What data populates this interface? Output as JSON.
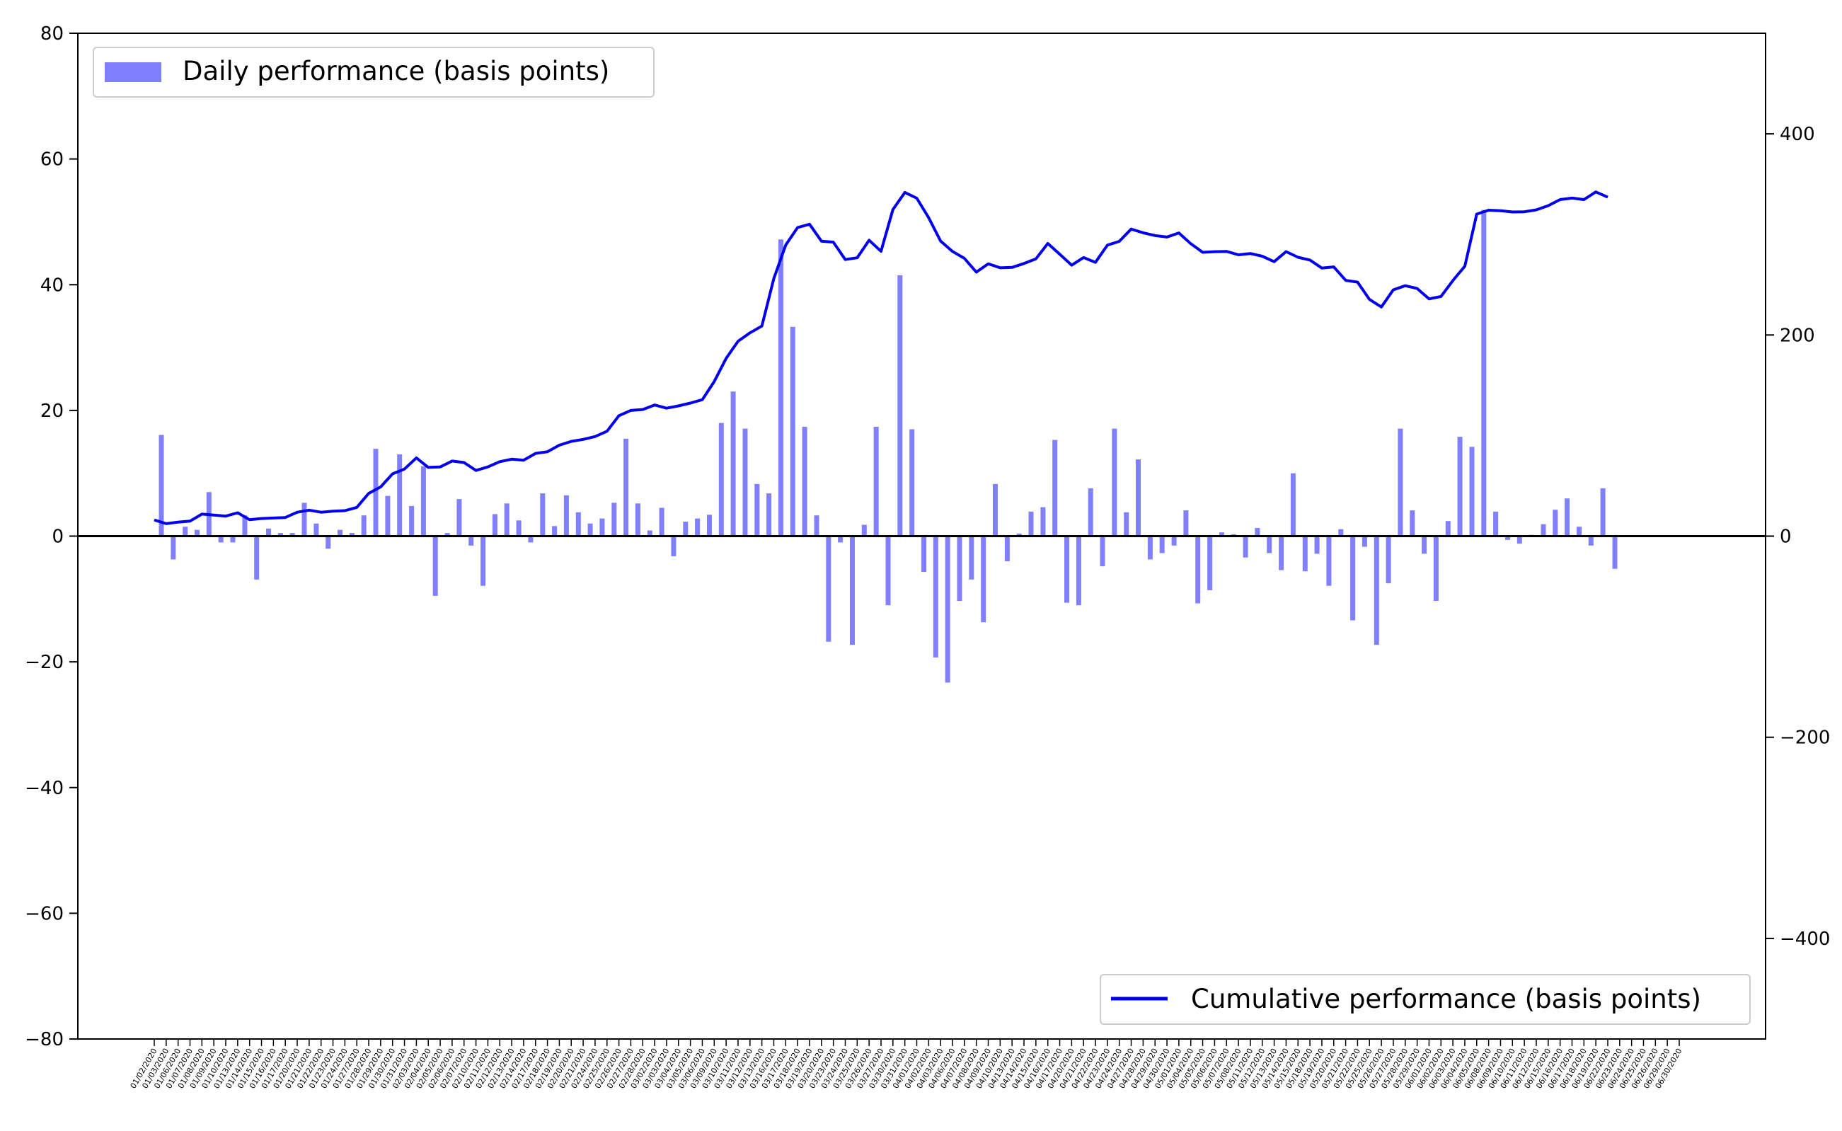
{
  "chart_data": {
    "type": "bar+line",
    "title": "",
    "xlabel": "",
    "ylabel_left": "",
    "ylabel_right": "",
    "ylim_left": [
      -80,
      80
    ],
    "ylim_right": [
      -500,
      500
    ],
    "yticks_left": [
      -80,
      -60,
      -40,
      -20,
      0,
      20,
      40,
      60,
      80
    ],
    "yticks_right": [
      -400,
      -200,
      0,
      200,
      400
    ],
    "grid": false,
    "legend_bars": {
      "label": "Daily performance (basis points)",
      "placement": "top-left"
    },
    "legend_line": {
      "label": "Cumulative performance (basis points)",
      "placement": "bottom-right"
    },
    "bar_color": "#8080ff",
    "line_color": "#0000ee",
    "zero_line_color": "#000000",
    "dates": [
      "01/02/2020",
      "01/03/2020",
      "01/06/2020",
      "01/07/2020",
      "01/08/2020",
      "01/09/2020",
      "01/10/2020",
      "01/13/2020",
      "01/14/2020",
      "01/15/2020",
      "01/16/2020",
      "01/17/2020",
      "01/20/2020",
      "01/21/2020",
      "01/22/2020",
      "01/23/2020",
      "01/24/2020",
      "01/27/2020",
      "01/28/2020",
      "01/29/2020",
      "01/30/2020",
      "01/31/2020",
      "02/03/2020",
      "02/04/2020",
      "02/05/2020",
      "02/06/2020",
      "02/07/2020",
      "02/10/2020",
      "02/11/2020",
      "02/12/2020",
      "02/13/2020",
      "02/14/2020",
      "02/17/2020",
      "02/18/2020",
      "02/19/2020",
      "02/20/2020",
      "02/21/2020",
      "02/24/2020",
      "02/25/2020",
      "02/26/2020",
      "02/27/2020",
      "02/28/2020",
      "03/02/2020",
      "03/03/2020",
      "03/04/2020",
      "03/05/2020",
      "03/06/2020",
      "03/09/2020",
      "03/10/2020",
      "03/11/2020",
      "03/12/2020",
      "03/13/2020",
      "03/16/2020",
      "03/17/2020",
      "03/18/2020",
      "03/19/2020",
      "03/20/2020",
      "03/23/2020",
      "03/24/2020",
      "03/25/2020",
      "03/26/2020",
      "03/27/2020",
      "03/30/2020",
      "03/31/2020",
      "04/01/2020",
      "04/02/2020",
      "04/03/2020",
      "04/06/2020",
      "04/07/2020",
      "04/08/2020",
      "04/09/2020",
      "04/10/2020",
      "04/13/2020",
      "04/14/2020",
      "04/15/2020",
      "04/16/2020",
      "04/17/2020",
      "04/20/2020",
      "04/21/2020",
      "04/22/2020",
      "04/23/2020",
      "04/24/2020",
      "04/27/2020",
      "04/28/2020",
      "04/29/2020",
      "04/30/2020",
      "05/01/2020",
      "05/04/2020",
      "05/05/2020",
      "05/06/2020",
      "05/07/2020",
      "05/08/2020",
      "05/11/2020",
      "05/12/2020",
      "05/13/2020",
      "05/14/2020",
      "05/15/2020",
      "05/18/2020",
      "05/19/2020",
      "05/20/2020",
      "05/21/2020",
      "05/22/2020",
      "05/25/2020",
      "05/26/2020",
      "05/27/2020",
      "05/28/2020",
      "05/29/2020",
      "06/01/2020",
      "06/02/2020",
      "06/03/2020",
      "06/04/2020",
      "06/05/2020",
      "06/08/2020",
      "06/09/2020",
      "06/10/2020",
      "06/11/2020",
      "06/12/2020",
      "06/15/2020",
      "06/16/2020",
      "06/17/2020",
      "06/18/2020",
      "06/19/2020",
      "06/22/2020",
      "06/23/2020",
      "06/24/2020",
      "06/25/2020",
      "06/26/2020",
      "06/29/2020",
      "06/30/2020"
    ],
    "daily": [
      16.1,
      -3.7,
      1.5,
      1.0,
      7.0,
      -1.0,
      -1.0,
      3.3,
      -6.9,
      1.2,
      0.5,
      0.5,
      5.3,
      2.0,
      -2.0,
      1.0,
      0.5,
      3.3,
      13.9,
      6.4,
      13.0,
      4.8,
      11.1,
      -9.5,
      0.5,
      5.9,
      -1.5,
      -7.9,
      3.5,
      5.2,
      2.5,
      -1.0,
      6.8,
      1.6,
      6.5,
      3.8,
      2.0,
      2.8,
      5.3,
      15.5,
      5.2,
      0.9,
      4.5,
      -3.2,
      2.3,
      2.8,
      3.4,
      18.0,
      23.0,
      17.1,
      8.3,
      6.8,
      47.2,
      33.3,
      17.4,
      3.3,
      -16.8,
      -1.0,
      -17.3,
      1.8,
      17.4,
      -11.0,
      41.5,
      17.0,
      -5.7,
      -19.3,
      -23.3,
      -10.3,
      -6.9,
      -13.7,
      8.3,
      -4.0,
      0.4,
      3.9,
      4.6,
      15.3,
      -10.6,
      -11.0,
      7.6,
      -4.8,
      17.1,
      3.8,
      12.2,
      -3.7,
      -2.7,
      -1.5,
      4.1,
      -10.7,
      -8.6,
      0.6,
      0.3,
      -3.4,
      1.3,
      -2.7,
      -5.4,
      10.0,
      -5.6,
      -2.8,
      -7.9,
      1.1,
      -13.4,
      -1.7,
      -17.3,
      -7.5,
      17.1,
      4.1,
      -2.8,
      -10.3,
      2.4,
      15.8,
      14.2,
      51.9,
      3.9,
      -0.6,
      -1.2,
      0.2,
      1.9,
      4.2,
      6.0,
      1.5,
      -1.5,
      7.6,
      -5.2
    ],
    "cumulative": [
      16.1,
      12.4,
      13.9,
      14.9,
      21.9,
      20.9,
      19.9,
      23.2,
      16.3,
      17.5,
      18.0,
      18.5,
      23.8,
      25.8,
      23.8,
      24.8,
      25.3,
      28.6,
      42.5,
      48.9,
      61.9,
      66.7,
      77.8,
      68.3,
      68.8,
      74.7,
      73.2,
      65.3,
      68.8,
      74.0,
      76.5,
      75.5,
      82.3,
      83.9,
      90.4,
      94.2,
      96.2,
      99.0,
      104.3,
      119.8,
      125.0,
      125.9,
      130.4,
      127.2,
      129.5,
      132.3,
      135.7,
      153.7,
      176.7,
      193.8,
      202.1,
      208.9,
      256.1,
      289.4,
      306.8,
      310.1,
      293.3,
      292.3,
      275.0,
      276.8,
      294.2,
      283.2,
      324.7,
      341.7,
      336.0,
      316.7,
      293.4,
      283.1,
      276.2,
      262.5,
      270.8,
      266.8,
      267.2,
      271.1,
      275.7,
      291.0,
      280.4,
      269.4,
      277.0,
      272.2,
      289.3,
      293.1,
      305.3,
      301.6,
      298.9,
      297.4,
      301.5,
      290.8,
      282.2,
      282.8,
      283.1,
      279.7,
      281.0,
      278.3,
      272.9,
      282.9,
      277.3,
      274.5,
      266.6,
      267.7,
      254.3,
      252.6,
      235.3,
      227.8,
      244.9,
      249.0,
      246.2,
      235.9,
      238.3,
      254.1,
      268.3,
      320.2,
      324.1,
      323.5,
      322.3,
      322.5,
      324.4,
      328.6,
      334.6,
      336.1,
      334.6,
      342.2,
      337.0
    ]
  }
}
